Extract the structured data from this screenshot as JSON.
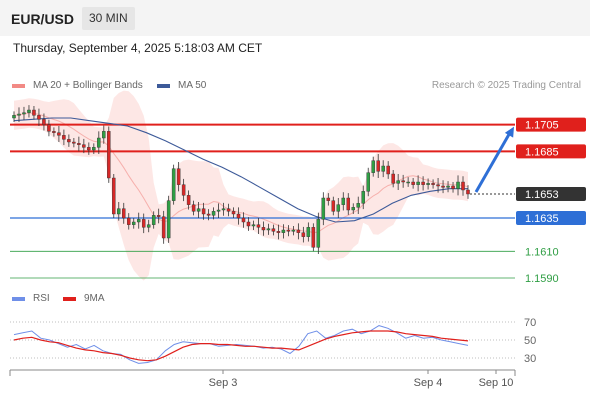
{
  "header": {
    "symbol": "EUR/USD",
    "timeframe": "30 MIN"
  },
  "datetime": "Thursday, September 4, 2025 5:18:03 AM CET",
  "legend": {
    "bb_label": "MA 20 + Bollinger Bands",
    "ma50_label": "MA 50",
    "credit": "Research © 2025 Trading Central"
  },
  "rsi_legend": {
    "rsi_label": "RSI",
    "ma9_label": "9MA"
  },
  "colors": {
    "bull": "#2f9e44",
    "bear": "#d62828",
    "resistance": "#e0201c",
    "support_blue": "#2e6fd6",
    "support_green": "#2f9e44",
    "ma50": "#3d5a99",
    "bollinger_fill": "#fde4e2",
    "current_price_box": "#333333",
    "rsi_line": "#6f8fe8",
    "rsi_ma9": "#e0201c",
    "arrow": "#2e6fd6"
  },
  "chart_data": {
    "type": "candlestick",
    "instrument": "EUR/USD",
    "timeframe": "30 MIN",
    "ylim": [
      1.1575,
      1.1725
    ],
    "x_tick_labels": [
      "Sep 3",
      "Sep 4",
      "Sep 10"
    ],
    "levels": [
      {
        "label": "1.1705",
        "value": 1.1705,
        "kind": "resistance"
      },
      {
        "label": "1.1685",
        "value": 1.1685,
        "kind": "resistance"
      },
      {
        "label": "1.1653",
        "value": 1.1653,
        "kind": "current"
      },
      {
        "label": "1.1635",
        "value": 1.1635,
        "kind": "support"
      },
      {
        "label": "1.1610",
        "value": 1.161,
        "kind": "minor-support"
      },
      {
        "label": "1.1590",
        "value": 1.159,
        "kind": "minor-support"
      }
    ],
    "current_price": 1.1653,
    "forecast": {
      "from": 1.1653,
      "to": 1.1705,
      "direction": "up"
    },
    "closes": [
      1.1712,
      1.1713,
      1.1714,
      1.1716,
      1.1712,
      1.1709,
      1.1705,
      1.17,
      1.1699,
      1.1697,
      1.1694,
      1.1692,
      1.1691,
      1.169,
      1.1688,
      1.1686,
      1.1688,
      1.1695,
      1.17,
      1.1665,
      1.1638,
      1.1642,
      1.1635,
      1.163,
      1.1632,
      1.1634,
      1.1628,
      1.163,
      1.1637,
      1.1636,
      1.162,
      1.1648,
      1.1672,
      1.166,
      1.1652,
      1.1645,
      1.164,
      1.1642,
      1.1638,
      1.1637,
      1.164,
      1.1641,
      1.1642,
      1.164,
      1.1638,
      1.1635,
      1.1632,
      1.1629,
      1.163,
      1.1628,
      1.1626,
      1.1627,
      1.1625,
      1.1624,
      1.1626,
      1.1625,
      1.1626,
      1.1624,
      1.1621,
      1.1628,
      1.1613,
      1.1634,
      1.165,
      1.1648,
      1.164,
      1.1645,
      1.165,
      1.1641,
      1.1643,
      1.1646,
      1.1655,
      1.1669,
      1.1678,
      1.167,
      1.1674,
      1.1668,
      1.1661,
      1.1663,
      1.1662,
      1.1662,
      1.166,
      1.1662,
      1.166,
      1.1661,
      1.166,
      1.1659,
      1.1658,
      1.1659,
      1.1657,
      1.1662,
      1.1656,
      1.1653
    ],
    "ma50": [
      1.1708,
      1.1709,
      1.171,
      1.171,
      1.1708,
      1.1706,
      1.1704,
      1.1699,
      1.1693,
      1.1686,
      1.1679,
      1.1673,
      1.1666,
      1.1658,
      1.165,
      1.1642,
      1.1636,
      1.1632,
      1.1633,
      1.1638,
      1.1646,
      1.1652,
      1.1655,
      1.1657,
      1.1657
    ],
    "rsi": {
      "ylim": [
        20,
        80
      ],
      "levels": [
        70,
        50,
        30
      ],
      "rsi": [
        56,
        58,
        60,
        52,
        50,
        46,
        42,
        45,
        40,
        44,
        38,
        35,
        34,
        28,
        24,
        25,
        28,
        38,
        45,
        48,
        47,
        46,
        46,
        43,
        44,
        45,
        44,
        43,
        41,
        42,
        40,
        35,
        43,
        57,
        60,
        52,
        55,
        60,
        62,
        57,
        60,
        66,
        63,
        58,
        52,
        55,
        52,
        53,
        50,
        48,
        46,
        44
      ],
      "ma9": [
        50,
        52,
        53,
        50,
        48,
        47,
        44,
        41,
        39,
        38,
        36,
        35,
        33,
        30,
        28,
        27,
        28,
        32,
        37,
        42,
        45,
        46,
        46,
        45,
        45,
        44,
        43,
        43,
        42,
        41,
        41,
        40,
        39,
        43,
        47,
        51,
        54,
        56,
        58,
        59,
        60,
        60,
        60,
        59,
        57,
        56,
        55,
        54,
        52,
        51,
        50,
        49
      ]
    }
  }
}
